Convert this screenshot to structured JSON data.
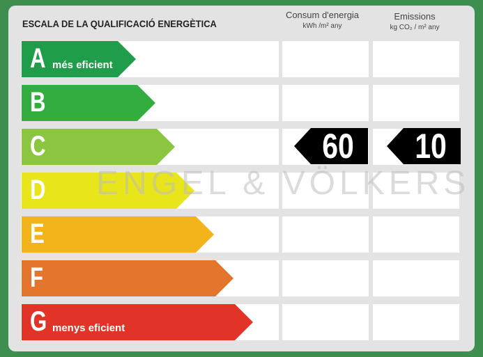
{
  "title": "ESCALA DE LA QUALIFICACIÓ ENERGÈTICA",
  "columns": {
    "consumption": {
      "label": "Consum d'energia",
      "unit": "kWh /m² any"
    },
    "emissions": {
      "label": "Emissions",
      "unit": "kg CO₂ / m² any"
    }
  },
  "scale": [
    {
      "letter": "A",
      "sublabel": "més eficient",
      "color": "#1f9d4a"
    },
    {
      "letter": "B",
      "sublabel": "",
      "color": "#33ad3f"
    },
    {
      "letter": "C",
      "sublabel": "",
      "color": "#8cc540"
    },
    {
      "letter": "D",
      "sublabel": "",
      "color": "#e8e51a"
    },
    {
      "letter": "E",
      "sublabel": "",
      "color": "#f2b41a"
    },
    {
      "letter": "F",
      "sublabel": "",
      "color": "#e3762c"
    },
    {
      "letter": "G",
      "sublabel": "menys eficient",
      "color": "#e23329"
    }
  ],
  "rating": {
    "class": "C",
    "consumption_value": "60",
    "emissions_value": "10",
    "marker_color": "#000000"
  },
  "watermark": "ENGEL & VÖLKERS"
}
